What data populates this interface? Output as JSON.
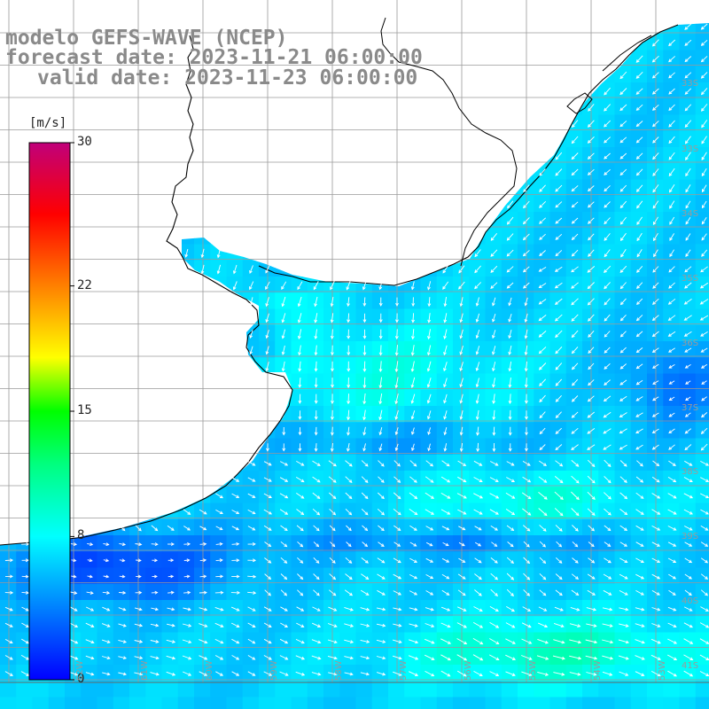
{
  "header": {
    "model": "modelo GEFS-WAVE (NCEP)",
    "forecast": "forecast date: 2023-11-21 06:00:00",
    "valid": "valid date: 2023-11-23 06:00:00"
  },
  "colorbar": {
    "unit": "[m/s]",
    "ticks": [
      {
        "value": 30,
        "label": "30"
      },
      {
        "value": 22,
        "label": "22"
      },
      {
        "value": 15,
        "label": "15"
      },
      {
        "value": 8,
        "label": "8"
      },
      {
        "value": 0,
        "label": "0"
      }
    ],
    "stops": [
      {
        "value": 0,
        "color": "#0000ff"
      },
      {
        "value": 4,
        "color": "#0080ff"
      },
      {
        "value": 8,
        "color": "#00ffff"
      },
      {
        "value": 12,
        "color": "#00ff80"
      },
      {
        "value": 15,
        "color": "#00ff00"
      },
      {
        "value": 18,
        "color": "#ffff00"
      },
      {
        "value": 22,
        "color": "#ff8000"
      },
      {
        "value": 26,
        "color": "#ff0000"
      },
      {
        "value": 30,
        "color": "#c0007a"
      }
    ]
  },
  "lat_labels": [
    {
      "text": "33S",
      "lat": -33
    },
    {
      "text": "33S",
      "lat": -33.5
    },
    {
      "text": "34S",
      "lat": -34
    },
    {
      "text": "35S",
      "lat": -35
    },
    {
      "text": "36S",
      "lat": -36
    },
    {
      "text": "37S",
      "lat": -37
    },
    {
      "text": "38S",
      "lat": -38
    },
    {
      "text": "39S",
      "lat": -39
    },
    {
      "text": "40S",
      "lat": -40
    },
    {
      "text": "41S",
      "lat": -41
    }
  ],
  "lon_labels": [
    {
      "text": "62W",
      "lon": -62
    },
    {
      "text": "61W",
      "lon": -61
    },
    {
      "text": "60W",
      "lon": -60
    },
    {
      "text": "59W",
      "lon": -59
    },
    {
      "text": "58W",
      "lon": -58
    },
    {
      "text": "57W",
      "lon": -57
    },
    {
      "text": "56W",
      "lon": -56
    },
    {
      "text": "55W",
      "lon": -55
    },
    {
      "text": "54W",
      "lon": -54
    },
    {
      "text": "53W",
      "lon": -53
    }
  ],
  "colors": {
    "grid": "#9a9a9a",
    "coast": "#000000",
    "arrow": "#ffffff",
    "title": "#8a8a8a"
  }
}
